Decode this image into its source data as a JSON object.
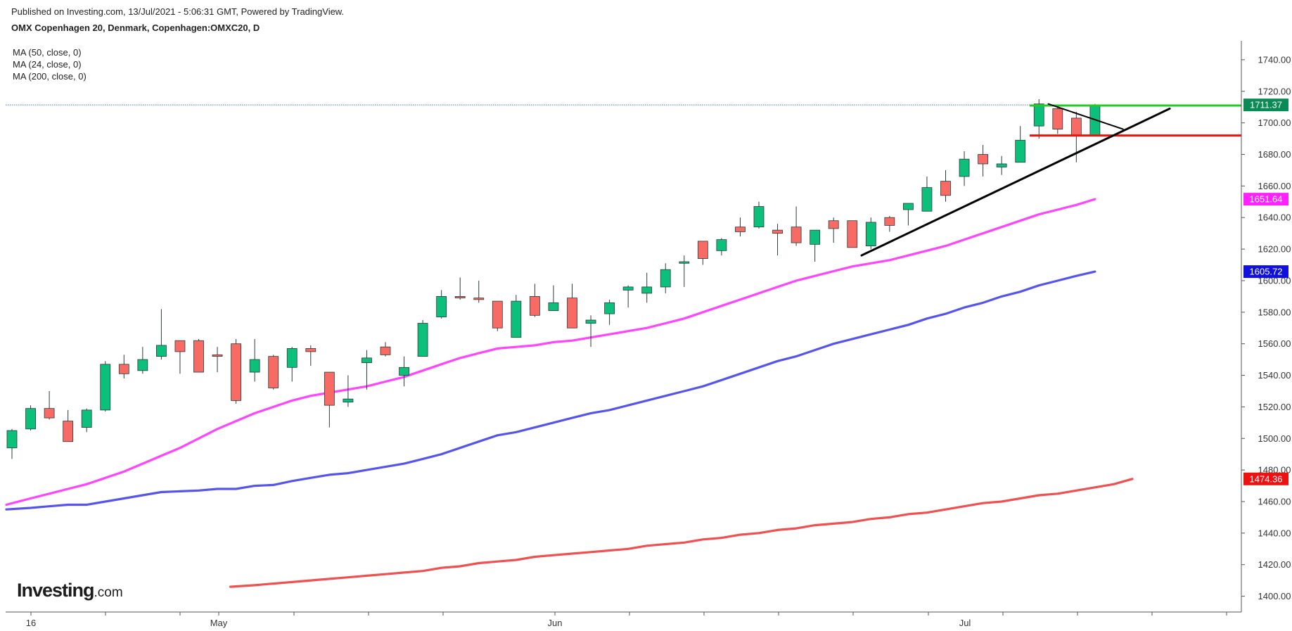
{
  "header": {
    "published": "Published on Investing.com, 13/Jul/2021 - 5:06:31 GMT, Powered by TradingView.",
    "title": "OMX Copenhagen 20, Denmark, Copenhagen:OMXC20, D"
  },
  "legend": {
    "ma_items": [
      "MA (50, close, 0)",
      "MA (24, close, 0)",
      "MA (200, close, 0)"
    ]
  },
  "logo": {
    "bold": "Investing",
    "suffix": ".com"
  },
  "colors": {
    "up": "#0cc07b",
    "down": "#f86a64",
    "wick": "#2d3a3a",
    "ma24": "#ff44ff",
    "ma50": "#5555ee",
    "ma200": "#f05050",
    "support": "#ee1111",
    "resistance": "#22cc22",
    "trend": "#000000",
    "last_line": "#4a6ed8",
    "last_tag": "#0a8a55"
  },
  "chart_data": {
    "type": "candlestick",
    "y_axis": {
      "min": 1390,
      "max": 1752,
      "ticks": [
        1400,
        1420,
        1440,
        1460,
        1480,
        1500,
        1520,
        1540,
        1560,
        1580,
        1600,
        1620,
        1640,
        1660,
        1680,
        1700,
        1720,
        1740
      ],
      "side": "right"
    },
    "x_labels": [
      "16",
      "May",
      "Jun",
      "Jul"
    ],
    "candles": [
      [
        1494,
        1506,
        1487,
        1505
      ],
      [
        1506,
        1521,
        1505,
        1519
      ],
      [
        1519,
        1530,
        1512,
        1513
      ],
      [
        1511,
        1518,
        1498,
        1498
      ],
      [
        1507,
        1519,
        1504,
        1518
      ],
      [
        1518,
        1549,
        1517,
        1547
      ],
      [
        1547,
        1553,
        1538,
        1541
      ],
      [
        1543,
        1558,
        1541,
        1550
      ],
      [
        1552,
        1582,
        1550,
        1559
      ],
      [
        1562,
        1562,
        1541,
        1555
      ],
      [
        1562,
        1563,
        1542,
        1542
      ],
      [
        1553,
        1558,
        1542,
        1552
      ],
      [
        1560,
        1563,
        1522,
        1524
      ],
      [
        1542,
        1563,
        1536,
        1550
      ],
      [
        1552,
        1553,
        1531,
        1532
      ],
      [
        1545,
        1558,
        1536,
        1557
      ],
      [
        1557,
        1559,
        1546,
        1555
      ],
      [
        1542,
        1542,
        1507,
        1521
      ],
      [
        1523,
        1540,
        1520,
        1525
      ],
      [
        1548,
        1556,
        1531,
        1551
      ],
      [
        1558,
        1561,
        1552,
        1553
      ],
      [
        1540,
        1552,
        1533,
        1545
      ],
      [
        1552,
        1575,
        1552,
        1573
      ],
      [
        1577,
        1594,
        1576,
        1590
      ],
      [
        1590,
        1602,
        1588,
        1589
      ],
      [
        1589,
        1600,
        1586,
        1588
      ],
      [
        1587,
        1587,
        1568,
        1570
      ],
      [
        1564,
        1591,
        1564,
        1587
      ],
      [
        1590,
        1598,
        1577,
        1578
      ],
      [
        1581,
        1597,
        1581,
        1586
      ],
      [
        1589,
        1598,
        1570,
        1570
      ],
      [
        1573,
        1578,
        1558,
        1575
      ],
      [
        1579,
        1588,
        1572,
        1586
      ],
      [
        1594,
        1597,
        1583,
        1596
      ],
      [
        1592,
        1605,
        1586,
        1596
      ],
      [
        1596,
        1611,
        1592,
        1607
      ],
      [
        1611,
        1616,
        1596,
        1612
      ],
      [
        1625,
        1625,
        1610,
        1614
      ],
      [
        1619,
        1627,
        1616,
        1626
      ],
      [
        1634,
        1640,
        1628,
        1631
      ],
      [
        1634,
        1650,
        1633,
        1647
      ],
      [
        1632,
        1636,
        1616,
        1630
      ],
      [
        1634,
        1647,
        1622,
        1624
      ],
      [
        1623,
        1632,
        1612,
        1632
      ],
      [
        1638,
        1640,
        1624,
        1633
      ],
      [
        1638,
        1638,
        1621,
        1621
      ],
      [
        1622,
        1640,
        1620,
        1637
      ],
      [
        1640,
        1641,
        1631,
        1635
      ],
      [
        1645,
        1648,
        1635,
        1649
      ],
      [
        1644,
        1666,
        1644,
        1659
      ],
      [
        1663,
        1670,
        1650,
        1654
      ],
      [
        1666,
        1682,
        1660,
        1677
      ],
      [
        1680,
        1686,
        1666,
        1674
      ],
      [
        1672,
        1679,
        1667,
        1674
      ],
      [
        1675,
        1698,
        1675,
        1689
      ],
      [
        1698,
        1715,
        1690,
        1712
      ],
      [
        1709,
        1711,
        1693,
        1696
      ],
      [
        1703,
        1707,
        1675,
        1692
      ],
      [
        1692,
        1712,
        1692,
        1711
      ]
    ],
    "ma_series": [
      {
        "name": "MA (50, close, 0)",
        "color": "#5555ee",
        "start_index": 0,
        "last": 1605.72,
        "values": [
          1455,
          1456,
          1457,
          1458,
          1458,
          1460,
          1462,
          1464,
          1466,
          1466.5,
          1467,
          1468,
          1468,
          1470,
          1470.5,
          1473,
          1475,
          1477,
          1478,
          1480,
          1482,
          1484,
          1487,
          1490,
          1494,
          1498,
          1502,
          1504,
          1507,
          1510,
          1513,
          1516,
          1518,
          1521,
          1524,
          1527,
          1530,
          1533,
          1537,
          1541,
          1545,
          1549,
          1552,
          1556,
          1560,
          1563,
          1566,
          1569,
          1572,
          1576,
          1579,
          1583,
          1586,
          1590,
          1593,
          1597,
          1600,
          1603,
          1605.72
        ]
      },
      {
        "name": "MA (24, close, 0)",
        "color": "#ff44ff",
        "start_index": 0,
        "last": 1651.64,
        "values": [
          1458,
          1462,
          1465,
          1468,
          1471,
          1475,
          1479,
          1484,
          1489,
          1494,
          1500,
          1506,
          1511,
          1516,
          1520,
          1524,
          1527,
          1529,
          1531,
          1533,
          1536,
          1539,
          1543,
          1547,
          1551,
          1554,
          1557,
          1558,
          1559,
          1561,
          1562,
          1564,
          1566,
          1568,
          1570,
          1573,
          1576,
          1580,
          1584,
          1588,
          1592,
          1596,
          1600,
          1603,
          1606,
          1609,
          1611,
          1613,
          1616,
          1619,
          1622,
          1626,
          1630,
          1634,
          1638,
          1642,
          1645,
          1648,
          1651.64
        ]
      },
      {
        "name": "MA (200, close, 0)",
        "color": "#f05050",
        "start_index": 12,
        "last": 1474.36,
        "values": [
          1406,
          1407,
          1408,
          1409,
          1410,
          1411,
          1412,
          1413,
          1414,
          1415,
          1416,
          1418,
          1419,
          1421,
          1422,
          1423,
          1425,
          1426,
          1427,
          1428,
          1429,
          1430,
          1432,
          1433,
          1434,
          1436,
          1437,
          1439,
          1440,
          1442,
          1443,
          1445,
          1446,
          1447,
          1449,
          1450,
          1452,
          1453,
          1455,
          1457,
          1459,
          1460,
          1462,
          1464,
          1465,
          1467,
          1469,
          1471,
          1474.36
        ]
      }
    ],
    "horizontal_levels": [
      {
        "name": "resistance",
        "value": 1711,
        "color": "#22cc22",
        "from_index": 54.5,
        "to": "edge"
      },
      {
        "name": "support",
        "value": 1692,
        "color": "#ee1111",
        "from_index": 54.5,
        "to": "edge"
      }
    ],
    "trend_lines": [
      {
        "name": "uptrend",
        "from": [
          45.5,
          1616
        ],
        "to": [
          62,
          1709
        ]
      },
      {
        "name": "short-down",
        "from": [
          55.5,
          1712
        ],
        "to": [
          59.5,
          1696
        ]
      }
    ],
    "price_labels": [
      {
        "text": "1711.37",
        "value": 1711.37,
        "color": "#0a8a55"
      },
      {
        "text": "1651.64",
        "value": 1651.64,
        "color": "#ff22ff"
      },
      {
        "text": "1605.72",
        "value": 1605.72,
        "color": "#1111dd"
      },
      {
        "text": "1474.36",
        "value": 1474.36,
        "color": "#ee1111"
      }
    ],
    "last_price": 1711.37
  }
}
